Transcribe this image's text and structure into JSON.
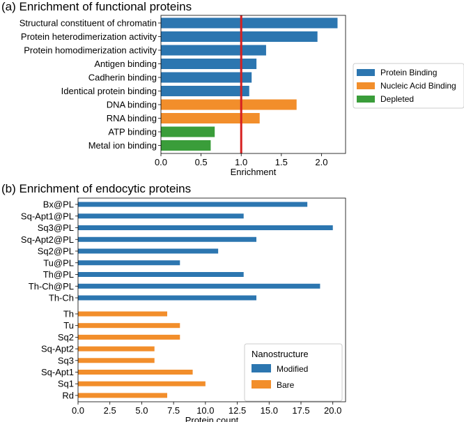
{
  "colors": {
    "protein_binding": "#2c76b0",
    "nucleic_acid_binding": "#f28e2b",
    "depleted": "#3a9d3a",
    "modified": "#2c76b0",
    "bare": "#f28e2b",
    "reference_line": "#d62020",
    "title": "#1a1adf"
  },
  "chart_data": [
    {
      "type": "bar",
      "orientation": "horizontal",
      "title": "(a) Enrichment of functional proteins",
      "xlabel": "Enrichment",
      "ylabel": "",
      "xlim": [
        0,
        2.3
      ],
      "xticks": [
        "0.0",
        "0.5",
        "1.0",
        "1.5",
        "2.0"
      ],
      "xtick_values": [
        0,
        0.5,
        1.0,
        1.5,
        2.0
      ],
      "reference_line": 1.0,
      "categories": [
        "Structural constituent of chromatin",
        "Protein heterodimerization activity",
        "Protein homodimerization activity",
        "Antigen binding",
        "Cadherin binding",
        "Identical protein binding",
        "DNA binding",
        "RNA binding",
        "ATP binding",
        "Metal ion binding"
      ],
      "values": [
        2.2,
        1.95,
        1.31,
        1.19,
        1.13,
        1.1,
        1.69,
        1.23,
        0.67,
        0.62
      ],
      "groups": [
        "Protein Binding",
        "Protein Binding",
        "Protein Binding",
        "Protein Binding",
        "Protein Binding",
        "Protein Binding",
        "Nucleic Acid Binding",
        "Nucleic Acid Binding",
        "Depleted",
        "Depleted"
      ],
      "legend": {
        "position": "right",
        "entries": [
          "Protein Binding",
          "Nucleic Acid Binding",
          "Depleted"
        ]
      }
    },
    {
      "type": "bar",
      "orientation": "horizontal",
      "title": "(b) Enrichment of endocytic proteins",
      "xlabel": "Protein count",
      "ylabel": "",
      "xlim": [
        0,
        21
      ],
      "xticks": [
        "0.0",
        "2.5",
        "5.0",
        "7.5",
        "10.0",
        "12.5",
        "15.0",
        "17.5",
        "20.0"
      ],
      "xtick_values": [
        0,
        2.5,
        5,
        7.5,
        10,
        12.5,
        15,
        17.5,
        20
      ],
      "categories": [
        "Bx@PL",
        "Sq-Apt1@PL",
        "Sq3@PL",
        "Sq-Apt2@PL",
        "Sq2@PL",
        "Tu@PL",
        "Th@PL",
        "Th-Ch@PL",
        "Th-Ch",
        "Th",
        "Tu",
        "Sq2",
        "Sq-Apt2",
        "Sq3",
        "Sq-Apt1",
        "Sq1",
        "Rd"
      ],
      "values": [
        18,
        13,
        20,
        14,
        11,
        8,
        13,
        19,
        14,
        7,
        8,
        8,
        6,
        6,
        9,
        10,
        7
      ],
      "groups": [
        "Modified",
        "Modified",
        "Modified",
        "Modified",
        "Modified",
        "Modified",
        "Modified",
        "Modified",
        "Modified",
        "Bare",
        "Bare",
        "Bare",
        "Bare",
        "Bare",
        "Bare",
        "Bare",
        "Bare"
      ],
      "legend": {
        "title": "Nanostructure",
        "position": "bottom-right",
        "entries": [
          "Modified",
          "Bare"
        ]
      }
    }
  ]
}
